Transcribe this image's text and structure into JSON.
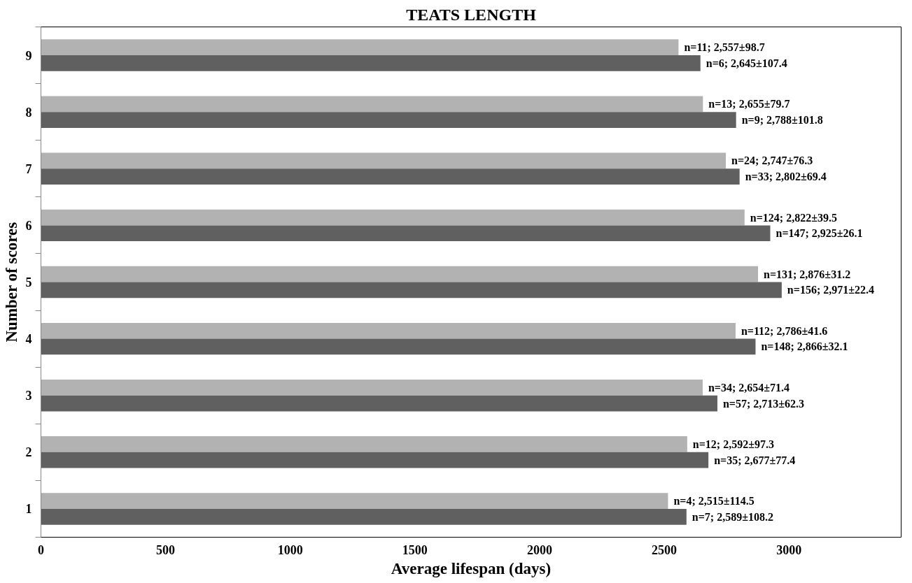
{
  "chart_data": {
    "type": "bar",
    "orientation": "horizontal",
    "title": "TEATS LENGTH",
    "xlabel": "Average lifespan (days)",
    "ylabel": "Number of scores",
    "categories": [
      "9",
      "8",
      "7",
      "6",
      "5",
      "4",
      "3",
      "2",
      "1"
    ],
    "series": [
      {
        "color": "#b2b2b2",
        "values": [
          2557,
          2655,
          2747,
          2822,
          2876,
          2786,
          2654,
          2592,
          2515
        ],
        "value_labels": [
          "n=11; 2,557±98.7",
          "n=13; 2,655±79.7",
          "n=24; 2,747±76.3",
          "n=124; 2,822±39.5",
          "n=131; 2,876±31.2",
          "n=112; 2,786±41.6",
          "n=34; 2,654±71.4",
          "n=12; 2,592±97.3",
          "n=4; 2,515±114.5"
        ]
      },
      {
        "color": "#606060",
        "values": [
          2645,
          2788,
          2802,
          2925,
          2971,
          2866,
          2713,
          2677,
          2589
        ],
        "value_labels": [
          "n=6; 2,645±107.4",
          "n=9; 2,788±101.8",
          "n=33; 2,802±69.4",
          "n=147; 2,925±26.1",
          "n=156; 2,971±22.4",
          "n=148; 2,866±32.1",
          "n=57; 2,713±62.3",
          "n=35; 2,677±77.4",
          "n=7; 2,589±108.2"
        ]
      }
    ],
    "xlim": [
      0,
      3450
    ],
    "xticks": [
      0,
      500,
      1000,
      1500,
      2000,
      2500,
      3000
    ],
    "grid": false
  }
}
